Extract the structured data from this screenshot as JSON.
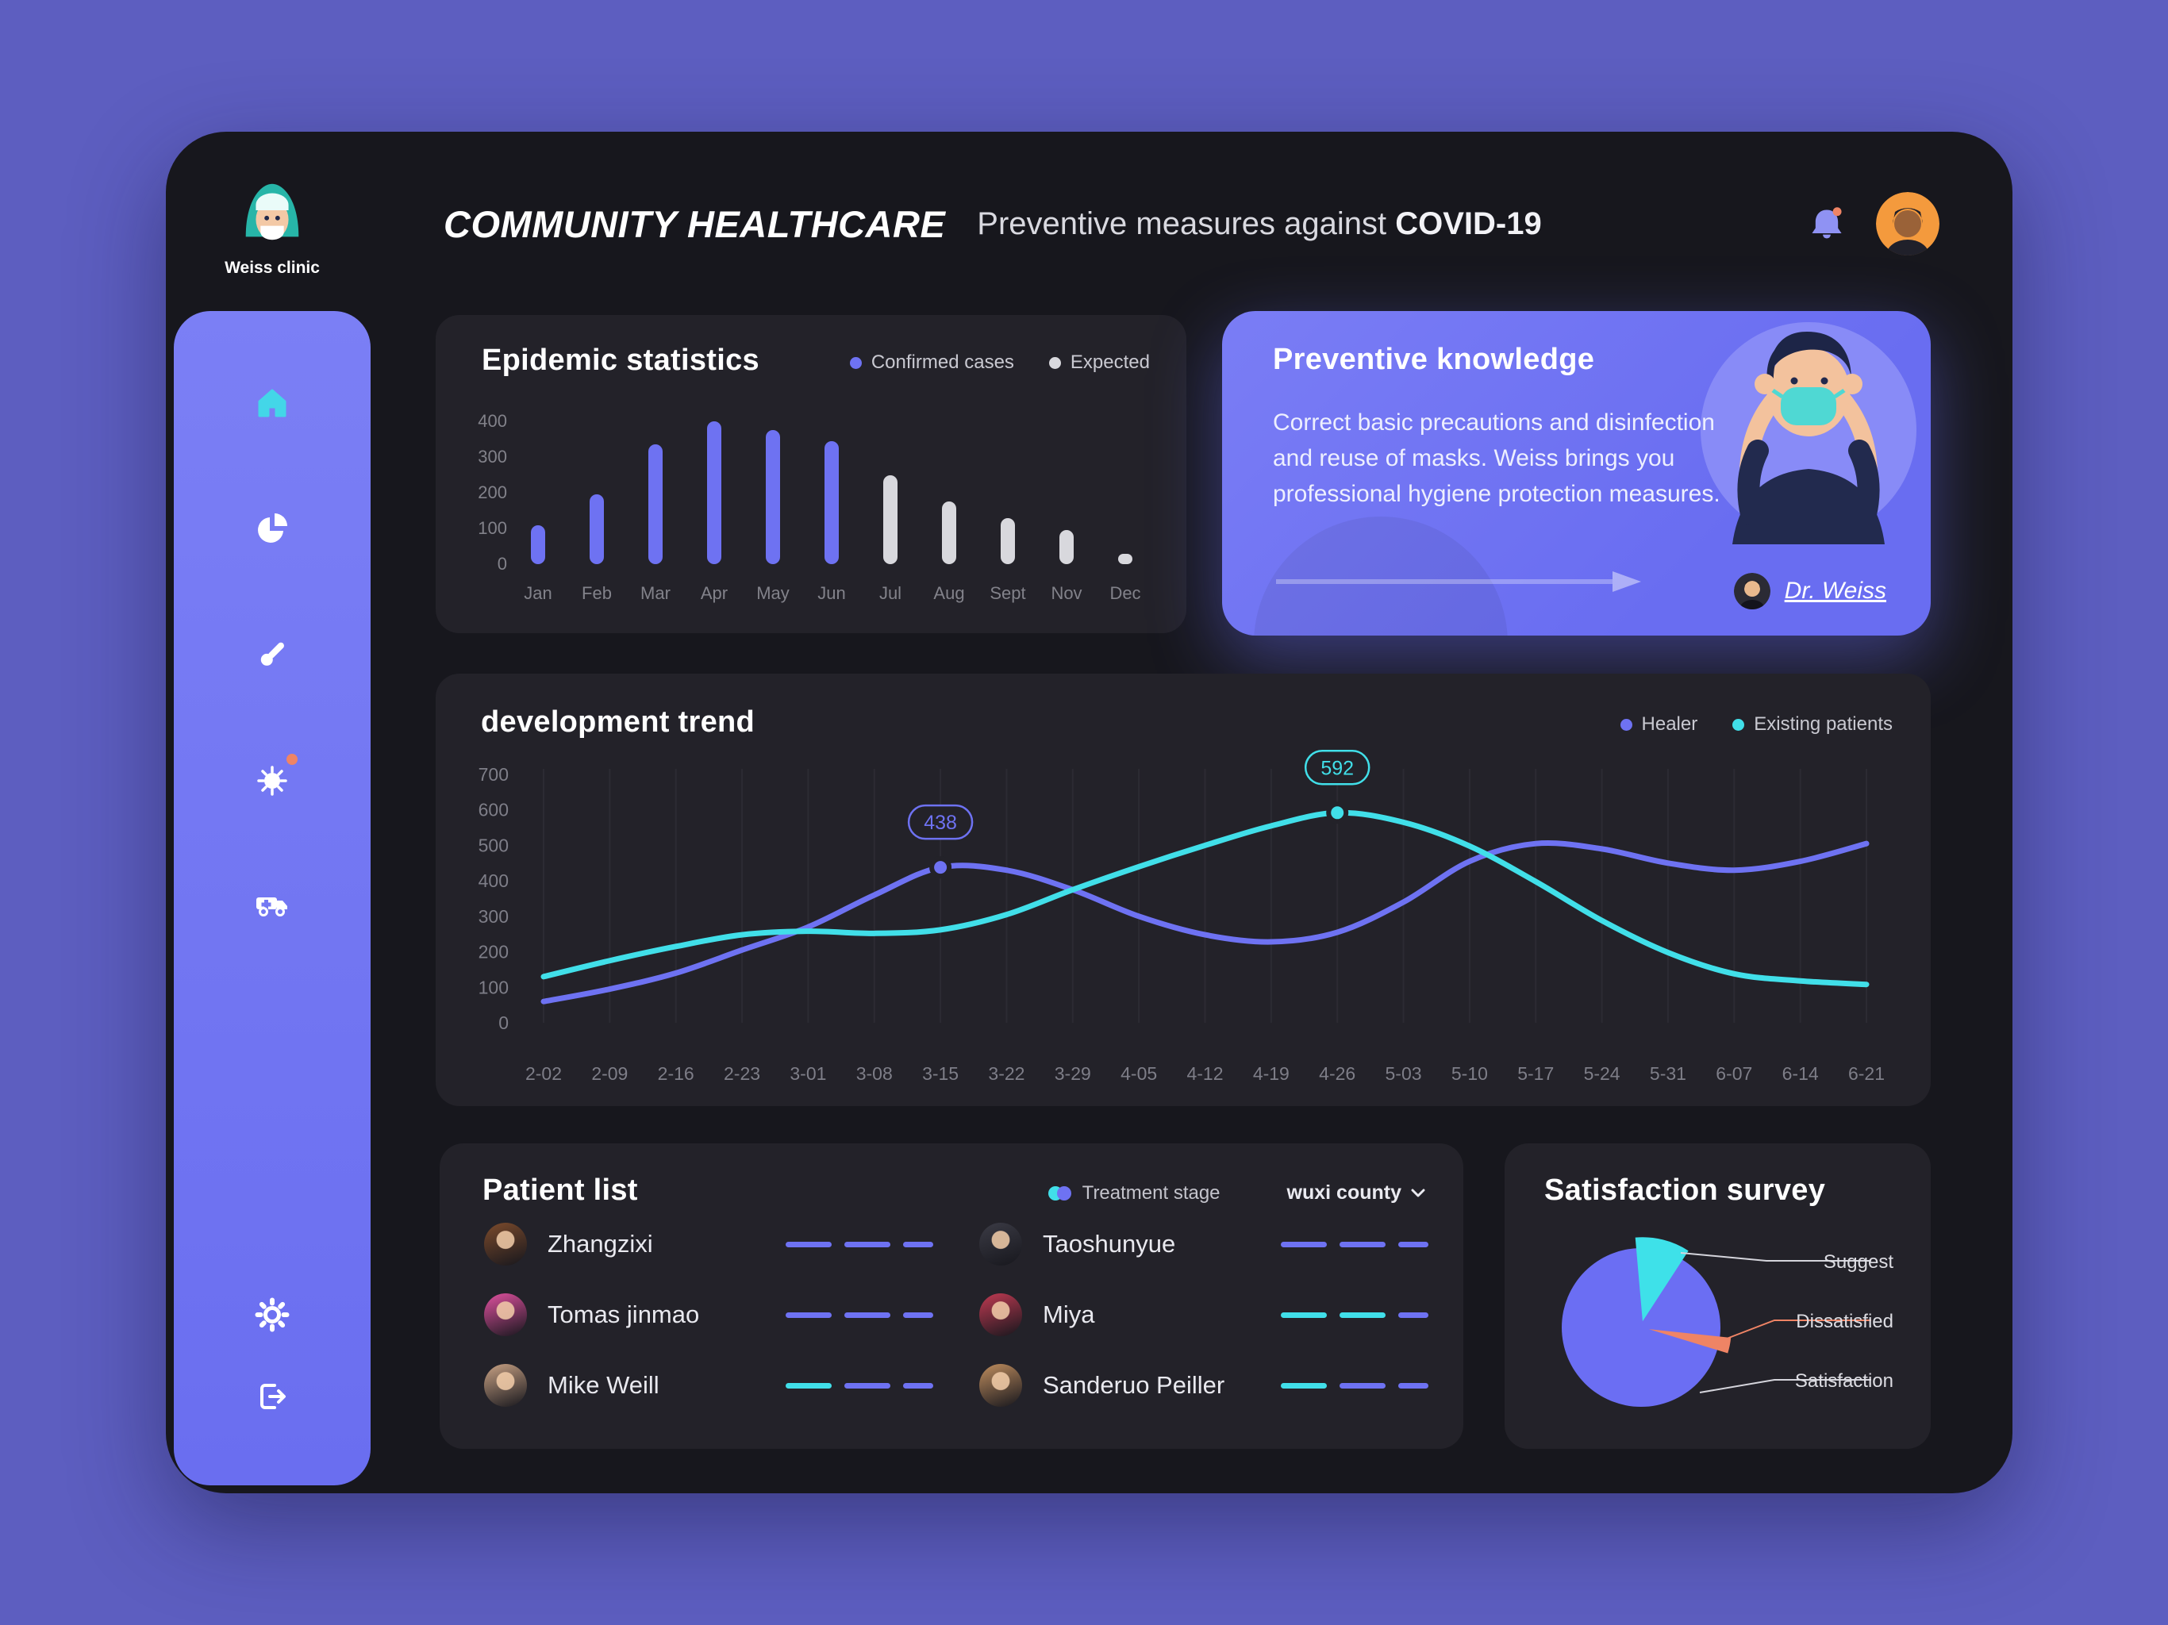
{
  "colors": {
    "background": "#5d5ec0",
    "window": "#17171d",
    "card": "#232229",
    "purple": "#6e72f2",
    "cyan": "#41dfe9",
    "gray_bar": "#d8d8dd",
    "orange": "#ef8465",
    "panel_purple": "#757af3"
  },
  "sidebar": {
    "clinic_name": "Weiss clinic",
    "icons": [
      "clinic-logo",
      "home-icon",
      "pie-chart-icon",
      "thermometer-icon",
      "virus-icon",
      "ambulance-icon",
      "settings-gear-icon",
      "logout-icon"
    ]
  },
  "header": {
    "title": "COMMUNITY HEALTHCARE",
    "subtitle_prefix": "Preventive measures against ",
    "subtitle_strong": "COVID-19",
    "icons": [
      "bell-icon",
      "user-avatar"
    ]
  },
  "epidemic": {
    "title": "Epidemic statistics",
    "legend": [
      {
        "label": "Confirmed cases",
        "color": "#6e72f2"
      },
      {
        "label": "Expected",
        "color": "#d8d8dd"
      }
    ],
    "chart_data": {
      "type": "bar",
      "categories": [
        "Jan",
        "Feb",
        "Mar",
        "Apr",
        "May",
        "Jun",
        "Jul",
        "Aug",
        "Sept",
        "Nov",
        "Dec"
      ],
      "values": [
        110,
        195,
        335,
        400,
        375,
        345,
        250,
        175,
        130,
        95,
        30
      ],
      "series_of": [
        "confirmed",
        "confirmed",
        "confirmed",
        "confirmed",
        "confirmed",
        "confirmed",
        "expected",
        "expected",
        "expected",
        "expected",
        "expected"
      ],
      "series_colors": {
        "confirmed": "#6e72f2",
        "expected": "#d8d8dd"
      },
      "yticks": [
        0,
        100,
        200,
        300,
        400
      ],
      "ylim": [
        0,
        400
      ],
      "grid": false
    }
  },
  "knowledge": {
    "title": "Preventive knowledge",
    "body": "Correct basic precautions and disinfection and reuse of masks. Weiss brings you professional hygiene protection measures.",
    "doctor": "Dr. Weiss",
    "icons": [
      "cta-arrow-icon",
      "doctor-avatar",
      "man-wearing-mask-illustration"
    ]
  },
  "trend": {
    "title": "development trend",
    "legend": [
      {
        "label": "Healer",
        "color": "#6e72f2"
      },
      {
        "label": "Existing patients",
        "color": "#41dfe9"
      }
    ],
    "chart_data": {
      "type": "line",
      "x": [
        "2-02",
        "2-09",
        "2-16",
        "2-23",
        "3-01",
        "3-08",
        "3-15",
        "3-22",
        "3-29",
        "4-05",
        "4-12",
        "4-19",
        "4-26",
        "5-03",
        "5-10",
        "5-17",
        "5-24",
        "5-31",
        "6-07",
        "6-14",
        "6-21"
      ],
      "yticks": [
        0,
        100,
        200,
        300,
        400,
        500,
        600,
        700
      ],
      "ylim": [
        0,
        700
      ],
      "grid": "vertical",
      "legend_position": "top-right",
      "series": [
        {
          "name": "Healer",
          "color": "#6e72f2",
          "values": [
            60,
            95,
            140,
            205,
            270,
            360,
            438,
            430,
            375,
            300,
            248,
            228,
            255,
            340,
            455,
            505,
            490,
            450,
            430,
            455,
            505
          ],
          "marker": {
            "x": "3-15",
            "value": 438
          }
        },
        {
          "name": "Existing patients",
          "color": "#41dfe9",
          "values": [
            130,
            175,
            215,
            248,
            258,
            252,
            262,
            305,
            375,
            440,
            500,
            555,
            592,
            565,
            498,
            398,
            288,
            198,
            138,
            118,
            108
          ],
          "marker": {
            "x": "4-26",
            "value": 592
          }
        }
      ]
    }
  },
  "patients": {
    "title": "Patient list",
    "treatment_stage_label": "Treatment stage",
    "county_filter": "wuxi county",
    "columns": [
      [
        {
          "name": "Zhangzixi",
          "dashes": [
            "purple",
            "purple",
            "purple"
          ],
          "avatar": "#7c4b2c"
        },
        {
          "name": "Tomas jinmao",
          "dashes": [
            "purple",
            "purple",
            "purple"
          ],
          "avatar": "#e0519f"
        },
        {
          "name": "Mike Weill",
          "dashes": [
            "cyan",
            "purple",
            "purple"
          ],
          "avatar": "#c9a284"
        }
      ],
      [
        {
          "name": "Taoshunyue",
          "dashes": [
            "purple",
            "purple",
            "purple"
          ],
          "avatar": "#3b3b45"
        },
        {
          "name": "Miya",
          "dashes": [
            "cyan",
            "cyan",
            "purple"
          ],
          "avatar": "#c03a52"
        },
        {
          "name": "Sanderuo Peiller",
          "dashes": [
            "cyan",
            "purple",
            "purple"
          ],
          "avatar": "#bf8d5e"
        }
      ]
    ]
  },
  "survey": {
    "title": "Satisfaction survey",
    "chart_data": {
      "type": "pie",
      "slices": [
        {
          "label": "Satisfaction",
          "value": 87,
          "color": "#6b6ef3"
        },
        {
          "label": "Suggest",
          "value": 10,
          "color": "#3ee1e9"
        },
        {
          "label": "Dissatisfied",
          "value": 3,
          "color": "#ef8465"
        }
      ],
      "legend_position": "right-labels-with-leader-lines"
    }
  }
}
